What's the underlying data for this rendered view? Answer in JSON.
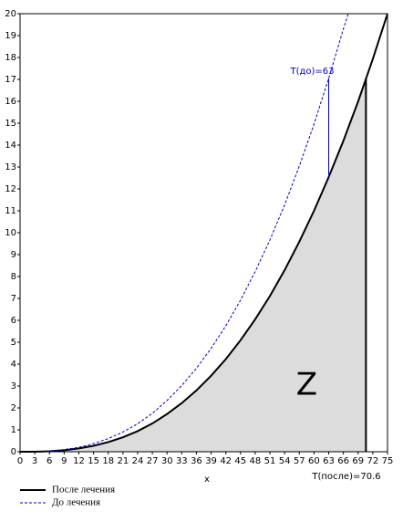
{
  "chart_data": {
    "type": "line",
    "xlabel": "x",
    "xlim": [
      0,
      75
    ],
    "ylim": [
      0,
      20
    ],
    "xticks": [
      0,
      3,
      6,
      9,
      12,
      15,
      18,
      21,
      24,
      27,
      30,
      33,
      36,
      39,
      42,
      45,
      48,
      51,
      54,
      57,
      60,
      63,
      66,
      69,
      72,
      75
    ],
    "yticks": [
      0,
      1,
      2,
      3,
      4,
      5,
      6,
      7,
      8,
      9,
      10,
      11,
      12,
      13,
      14,
      15,
      16,
      17,
      18,
      19,
      20
    ],
    "series": [
      {
        "name": "После лечения",
        "color": "#000000",
        "style": "solid",
        "x": [
          0,
          3,
          6,
          9,
          12,
          15,
          18,
          21,
          24,
          27,
          30,
          33,
          36,
          39,
          42,
          45,
          48,
          51,
          54,
          57,
          60,
          63,
          66,
          69,
          72,
          75
        ],
        "values": [
          0,
          0,
          0.02,
          0.07,
          0.15,
          0.27,
          0.44,
          0.66,
          0.94,
          1.29,
          1.72,
          2.22,
          2.8,
          3.47,
          4.23,
          5.09,
          6.05,
          7.11,
          8.29,
          9.59,
          11.0,
          12.54,
          14.2,
          15.99,
          17.93,
          20
        ]
      },
      {
        "name": "До лечения",
        "color": "#0000cc",
        "style": "dashed",
        "x": [
          0,
          3,
          6,
          9,
          12,
          15,
          18,
          21,
          24,
          27,
          30,
          33,
          36,
          39,
          42,
          45,
          48,
          51,
          54,
          57,
          60,
          63,
          66,
          67
        ],
        "values": [
          0,
          0,
          0.03,
          0.1,
          0.2,
          0.37,
          0.6,
          0.9,
          1.28,
          1.75,
          2.34,
          3.02,
          3.81,
          4.72,
          5.75,
          6.92,
          8.23,
          9.67,
          11.27,
          13.04,
          14.96,
          17.05,
          19.31,
          20
        ]
      }
    ],
    "area": {
      "label": "Z",
      "color": "#dcdcdc"
    },
    "t_before": {
      "label": "T(до)=63",
      "x": 63
    },
    "t_after": {
      "label": "T(после)=70.6",
      "x": 70.6
    }
  }
}
